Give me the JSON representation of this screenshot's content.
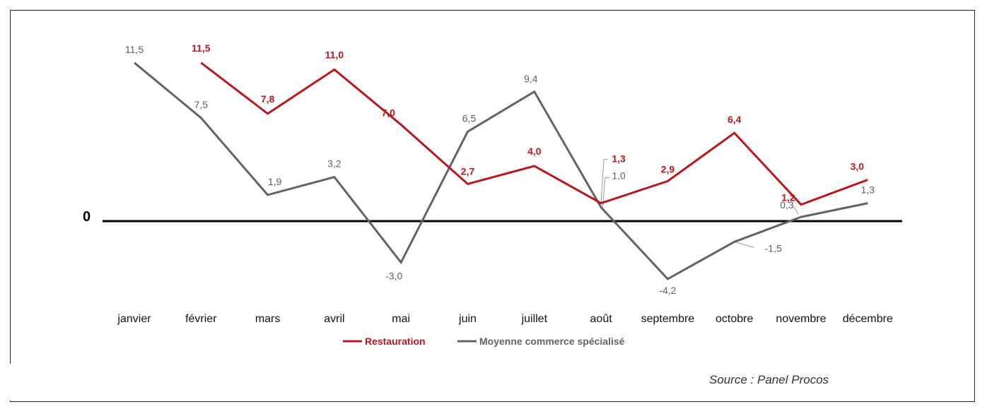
{
  "chart_data": {
    "type": "line",
    "categories": [
      "janvier",
      "février",
      "mars",
      "avril",
      "mai",
      "juin",
      "juillet",
      "août",
      "septembre",
      "octobre",
      "novembre",
      "décembre"
    ],
    "series": [
      {
        "name": "Restauration",
        "color": "#b5181e",
        "values": [
          null,
          11.5,
          7.8,
          11.0,
          7.0,
          2.7,
          4.0,
          1.3,
          2.9,
          6.4,
          1.2,
          3.0
        ],
        "labels": [
          "",
          "11,5",
          "7,8",
          "11,0",
          "7,0",
          "2,7",
          "4,0",
          "1,3",
          "2,9",
          "6,4",
          "1,2",
          "3,0"
        ]
      },
      {
        "name": "Moyenne commerce spécialisé",
        "color": "#636363",
        "values": [
          11.5,
          7.5,
          1.9,
          3.2,
          -3.0,
          6.5,
          9.4,
          1.0,
          -4.2,
          -1.5,
          0.3,
          1.3
        ],
        "labels": [
          "11,5",
          "7,5",
          "1,9",
          "3,2",
          "-3,0",
          "6,5",
          "9,4",
          "1,0",
          "-4,2",
          "-1,5",
          "0,3",
          "1,3"
        ]
      }
    ],
    "zero_label": "0",
    "ylim": [
      -4.2,
      11.5
    ],
    "legend_position": "bottom",
    "grid": false
  },
  "source": "Source : Panel Procos"
}
